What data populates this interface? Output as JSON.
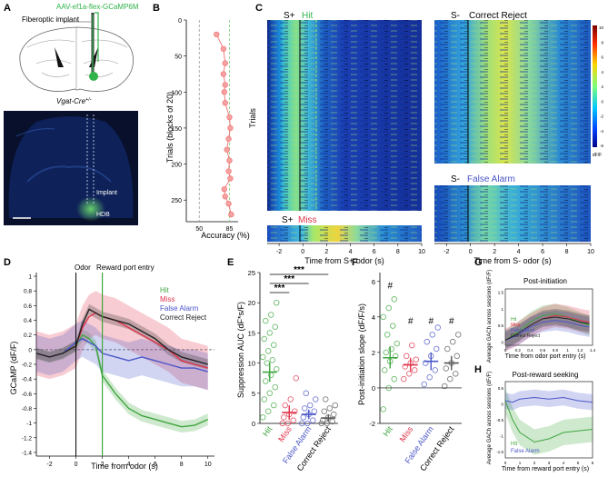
{
  "panels": {
    "a": {
      "letter": "A",
      "construct": "AAV-ef1a-flex-GCaMP6M",
      "implant": "Fiberoptic implant",
      "mouse": "Vgat-Cre",
      "mouse_sup": "+/-",
      "histo_implant": "Implant",
      "histo_hdb": "HDB"
    },
    "b": {
      "letter": "B",
      "ylabel": "Trials (blocks of 20)",
      "xlabel": "Accuracy (%)",
      "yticks": [
        "0",
        "50",
        "100",
        "150",
        "200",
        "250"
      ],
      "xticks": [
        "50",
        "85"
      ]
    },
    "c": {
      "letter": "C",
      "hit_title": "S+",
      "hit_word": "Hit",
      "miss_title": "S+",
      "miss_word": "Miss",
      "cr_title": "S-",
      "cr_word": "Correct Reject",
      "fa_title": "S-",
      "fa_word": "False Alarm",
      "ylabel": "Trials",
      "xlabel_left": "Time from S+ odor (s)",
      "xlabel_right": "Time from S- odor (s)",
      "xticks": [
        "-2",
        "0",
        "2",
        "4",
        "6",
        "8",
        "10"
      ],
      "cbar_ticks": [
        "10",
        "8",
        "6",
        "4",
        "2",
        "0",
        "-2",
        "-4",
        "-6"
      ],
      "cbar_unit": "dF/F"
    },
    "d": {
      "letter": "D",
      "odor": "Odor",
      "reward": "Reward port entry",
      "ylabel": "GCaMP (dF/F)",
      "xlabel": "Time from odor (s)",
      "yticks": [
        "1",
        "0.8",
        "0.6",
        "0.4",
        "0.2",
        "0",
        "-0.2",
        "-0.4",
        "-0.6",
        "-0.8",
        "-1",
        "-1.2",
        "-1.4"
      ],
      "xticks": [
        "-2",
        "0",
        "2",
        "4",
        "6",
        "8",
        "10"
      ],
      "legend": [
        "Hit",
        "Miss",
        "False Alarm",
        "Correct Reject"
      ]
    },
    "e": {
      "letter": "E",
      "ylabel": "Suppression AUC (dF*s/F)",
      "yticks": [
        "0",
        "5",
        "10",
        "15",
        "20",
        "25"
      ],
      "sig": [
        "***",
        "***",
        "***"
      ],
      "groups": [
        "Hit",
        "Miss",
        "False Alarm",
        "Correct Reject"
      ]
    },
    "f": {
      "letter": "F",
      "ylabel": "Post-initiation slope (dF/F/s)",
      "yticks": [
        "-2",
        "0",
        "2",
        "4",
        "6"
      ],
      "hash": [
        "#",
        "#",
        "#",
        "#"
      ],
      "groups": [
        "Hit",
        "Miss",
        "False Alarm",
        "Correct Reject"
      ]
    },
    "g": {
      "letter": "G",
      "title": "Post-initiation",
      "ylabel": "Average GACh across sessions (dF/F)",
      "xlabel": "Time from odor port entry (s)",
      "xticks": [
        "0",
        "0.2",
        "0.4",
        "0.6",
        "0.8",
        "1",
        "1.2",
        "1.4"
      ],
      "yticks": [
        "1.5",
        "1",
        "0.5",
        "0"
      ],
      "legend": [
        "Hit",
        "Miss",
        "False Alarm",
        "Correct Reject"
      ]
    },
    "h": {
      "letter": "H",
      "title": "Post-reward seeking",
      "ylabel": "Average GACh across sessions (dF/F)",
      "xlabel": "Time from reward port entry (s)",
      "xticks": [
        "0",
        "1",
        "2",
        "3",
        "4",
        "5",
        "6"
      ],
      "yticks": [
        "0.5",
        "0",
        "-0.5",
        "-1",
        "-1.5"
      ],
      "legend": [
        "Hit",
        "False Alarm"
      ]
    }
  },
  "colors": {
    "hit": "#3fa63f",
    "miss": "#e0334a",
    "fa": "#4a56c8",
    "cr": "#222222",
    "marker": "#f07070"
  },
  "chart_data": [
    {
      "id": "B",
      "type": "scatter",
      "title": "",
      "xlabel": "Accuracy (%)",
      "ylabel": "Trials (blocks of 20)",
      "x_range": [
        35,
        95
      ],
      "y_range": [
        280,
        0
      ],
      "x": [
        70,
        78,
        80,
        78,
        80,
        79,
        80,
        85,
        86,
        84,
        82,
        85,
        84,
        86,
        79,
        80,
        84,
        87
      ],
      "y": [
        20,
        40,
        60,
        75,
        90,
        100,
        115,
        135,
        150,
        165,
        180,
        195,
        210,
        220,
        235,
        245,
        255,
        270
      ]
    },
    {
      "id": "D",
      "type": "line",
      "xlabel": "Time from odor (s)",
      "ylabel": "GCaMP (dF/F)",
      "x_range": [
        -3,
        10.5
      ],
      "y_range": [
        -1.45,
        1.05
      ],
      "x": [
        -3,
        -2,
        -1,
        0,
        0.5,
        1,
        1.5,
        2,
        3,
        4,
        5,
        6,
        7,
        8,
        9,
        10
      ],
      "series": [
        {
          "name": "Hit",
          "values": [
            -0.05,
            -0.1,
            -0.05,
            0.05,
            0.2,
            0.15,
            0.05,
            -0.35,
            -0.6,
            -0.8,
            -0.9,
            -0.95,
            -1.0,
            -1.05,
            -1.03,
            -0.95
          ]
        },
        {
          "name": "Miss",
          "values": [
            -0.05,
            -0.1,
            -0.05,
            0.05,
            0.3,
            0.45,
            0.5,
            0.45,
            0.4,
            0.3,
            0.2,
            0.1,
            0.0,
            -0.15,
            -0.2,
            -0.25
          ]
        },
        {
          "name": "False Alarm",
          "values": [
            -0.05,
            -0.1,
            -0.05,
            0.1,
            0.15,
            0.1,
            0.05,
            -0.05,
            -0.1,
            -0.15,
            -0.1,
            -0.15,
            -0.2,
            -0.25,
            -0.25,
            -0.3
          ]
        },
        {
          "name": "Correct Reject",
          "values": [
            -0.05,
            -0.1,
            -0.05,
            0.05,
            0.35,
            0.55,
            0.5,
            0.45,
            0.4,
            0.35,
            0.25,
            0.15,
            0.0,
            -0.1,
            -0.15,
            -0.2
          ]
        }
      ]
    },
    {
      "id": "E",
      "type": "scatter",
      "ylabel": "Suppression AUC (dF*s/F)",
      "y_range": [
        0,
        25
      ],
      "categories": [
        "Hit",
        "Miss",
        "False Alarm",
        "Correct Reject"
      ],
      "means": [
        8.5,
        1.8,
        1.5,
        0.9
      ],
      "sem": [
        1.6,
        1.2,
        0.8,
        0.6
      ],
      "points": [
        [
          1,
          2,
          3,
          4,
          5,
          6,
          7,
          8,
          9,
          10,
          10.5,
          11,
          12,
          13,
          14,
          15,
          16,
          17,
          18,
          20
        ],
        [
          0,
          0,
          0.5,
          1,
          1.5,
          2,
          3,
          4,
          7.5
        ],
        [
          0,
          0,
          0.5,
          1,
          1.5,
          2,
          2.5,
          3,
          4,
          5
        ],
        [
          0,
          0,
          0.3,
          0.5,
          1,
          1.5,
          2,
          2.5,
          3,
          4
        ]
      ]
    },
    {
      "id": "F",
      "type": "scatter",
      "ylabel": "Post-initiation slope (dF/F/s)",
      "y_range": [
        -2,
        6.5
      ],
      "categories": [
        "Hit",
        "Miss",
        "False Alarm",
        "Correct Reject"
      ],
      "means": [
        1.7,
        1.3,
        1.5,
        1.4
      ],
      "sem": [
        0.6,
        0.4,
        0.5,
        0.4
      ],
      "points": [
        [
          -1.2,
          0,
          0.5,
          1,
          1.5,
          1.8,
          2,
          2.2,
          2.5,
          3,
          3.5,
          4,
          4.5,
          5
        ],
        [
          0.5,
          0.8,
          1,
          1.2,
          1.4,
          1.6,
          1.8,
          2.4
        ],
        [
          0.2,
          0.6,
          1,
          1.4,
          1.8,
          2.2,
          2.6,
          3,
          3.4
        ],
        [
          0.1,
          0.5,
          0.8,
          1.1,
          1.4,
          1.8,
          2.2,
          2.6,
          3
        ]
      ]
    },
    {
      "id": "G",
      "type": "line",
      "xlabel": "Time from odor port entry (s)",
      "ylabel": "Average GACh across sessions (dF/F)",
      "x_range": [
        0,
        1.4
      ],
      "y_range": [
        -0.1,
        1.6
      ],
      "x": [
        0,
        0.2,
        0.4,
        0.6,
        0.8,
        1,
        1.2,
        1.35
      ],
      "series": [
        {
          "name": "Hit",
          "values": [
            0.05,
            0.3,
            0.6,
            0.8,
            0.85,
            0.75,
            0.6,
            0.5
          ]
        },
        {
          "name": "Miss",
          "values": [
            0.05,
            0.25,
            0.5,
            0.7,
            0.8,
            0.75,
            0.65,
            0.6
          ]
        },
        {
          "name": "False Alarm",
          "values": [
            0.05,
            0.2,
            0.45,
            0.6,
            0.65,
            0.6,
            0.5,
            0.45
          ]
        },
        {
          "name": "Correct Reject",
          "values": [
            0.05,
            0.25,
            0.5,
            0.7,
            0.75,
            0.7,
            0.6,
            0.55
          ]
        }
      ]
    },
    {
      "id": "H",
      "type": "line",
      "xlabel": "Time from reward port entry (s)",
      "ylabel": "Average GACh across sessions (dF/F)",
      "x_range": [
        0,
        6
      ],
      "y_range": [
        -1.7,
        0.7
      ],
      "x": [
        0,
        0.5,
        1,
        2,
        3,
        4,
        5,
        6
      ],
      "series": [
        {
          "name": "Hit",
          "values": [
            0.1,
            -0.5,
            -0.9,
            -1.2,
            -1.1,
            -0.9,
            -0.85,
            -0.8
          ]
        },
        {
          "name": "False Alarm",
          "values": [
            0.1,
            0.05,
            0.15,
            0.2,
            0.15,
            0.2,
            0.1,
            0.05
          ]
        }
      ]
    }
  ]
}
